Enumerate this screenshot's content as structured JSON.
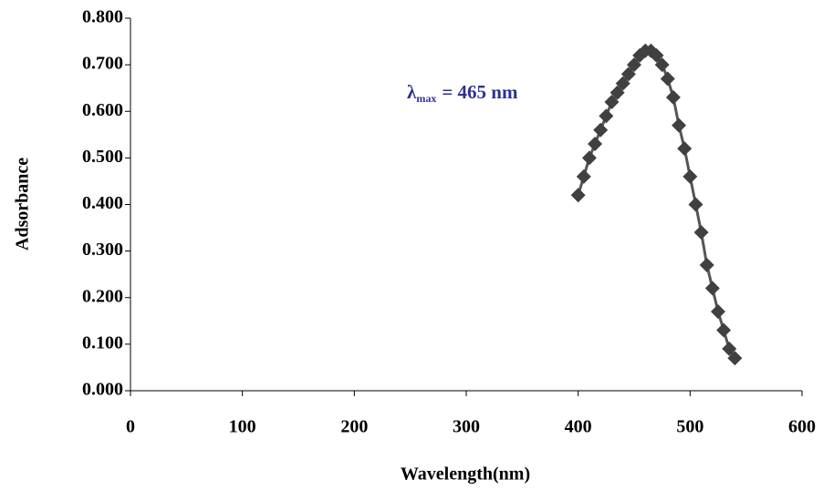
{
  "chart_data": {
    "type": "line",
    "x_label": "Wavelength(nm)",
    "y_label": "Adsorbance",
    "annotation": {
      "symbol": "λ",
      "subscript": "max",
      "text": "= 465 nm"
    },
    "x": [
      400,
      405,
      410,
      415,
      420,
      425,
      430,
      435,
      440,
      445,
      450,
      455,
      460,
      465,
      470,
      475,
      480,
      485,
      490,
      495,
      500,
      505,
      510,
      515,
      520,
      525,
      530,
      535,
      540
    ],
    "values": [
      0.42,
      0.46,
      0.5,
      0.53,
      0.56,
      0.59,
      0.62,
      0.64,
      0.66,
      0.68,
      0.7,
      0.72,
      0.73,
      0.73,
      0.72,
      0.7,
      0.67,
      0.63,
      0.57,
      0.52,
      0.46,
      0.4,
      0.34,
      0.27,
      0.22,
      0.17,
      0.13,
      0.09,
      0.07
    ],
    "color": "#404040",
    "line_color": "#555555",
    "xlim": [
      0,
      600
    ],
    "xticks": [
      0,
      100,
      200,
      300,
      400,
      500,
      600
    ],
    "ylim": [
      0,
      0.8
    ],
    "yticks": [
      {
        "value": 0,
        "label": "0.000"
      },
      {
        "value": 0.1,
        "label": "0.100"
      },
      {
        "value": 0.2,
        "label": "0.200"
      },
      {
        "value": 0.3,
        "label": "0.300"
      },
      {
        "value": 0.4,
        "label": "0.400"
      },
      {
        "value": 0.5,
        "label": "0.500"
      },
      {
        "value": 0.6,
        "label": "0.600"
      },
      {
        "value": 0.7,
        "label": "0.700"
      },
      {
        "value": 0.8,
        "label": "0.800"
      }
    ]
  }
}
